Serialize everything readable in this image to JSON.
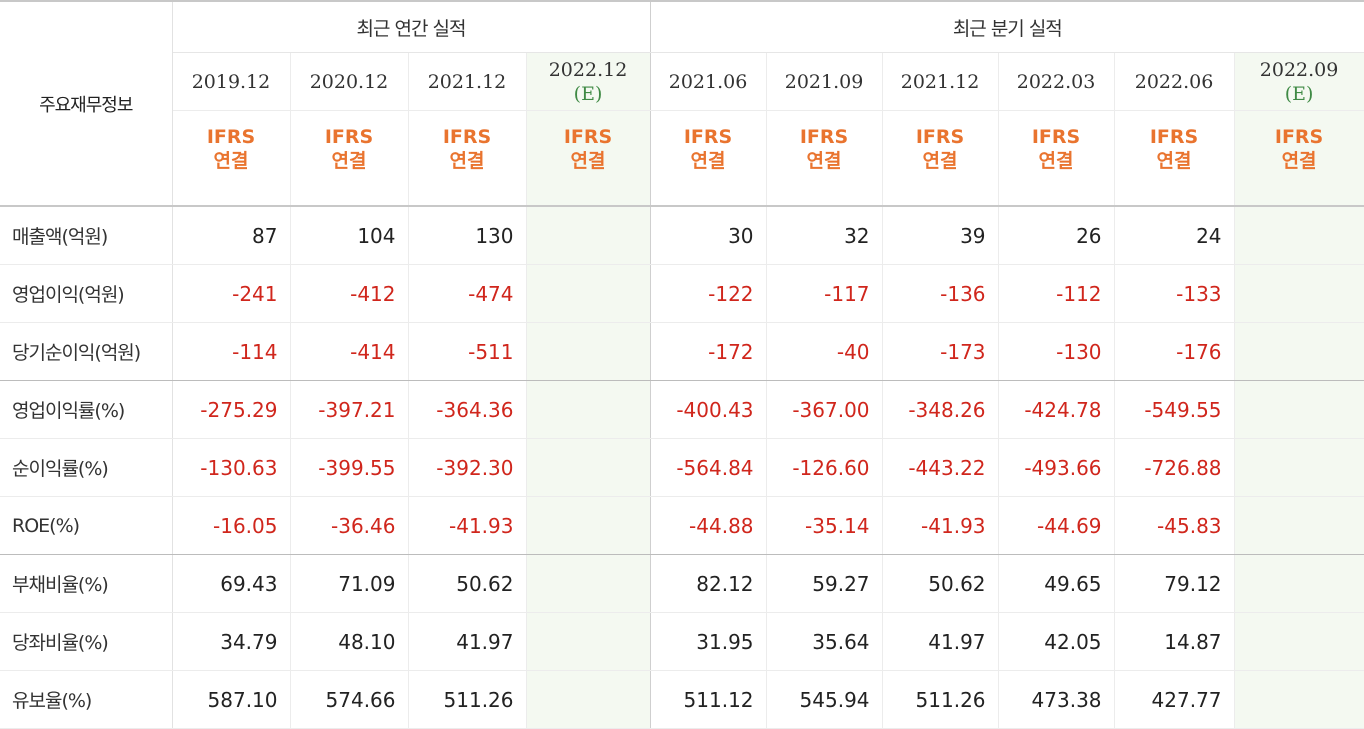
{
  "header": {
    "corner_label": "주요재무정보",
    "annual_group": "최근 연간 실적",
    "quarter_group": "최근 분기 실적",
    "estimate_tag": "(E)",
    "ifrs_line1": "IFRS",
    "ifrs_line2": "연결"
  },
  "annual_periods": [
    {
      "label": "2019.12",
      "estimate": false
    },
    {
      "label": "2020.12",
      "estimate": false
    },
    {
      "label": "2021.12",
      "estimate": false
    },
    {
      "label": "2022.12",
      "estimate": true
    }
  ],
  "quarter_periods": [
    {
      "label": "2021.06",
      "estimate": false
    },
    {
      "label": "2021.09",
      "estimate": false
    },
    {
      "label": "2021.12",
      "estimate": false
    },
    {
      "label": "2022.03",
      "estimate": false
    },
    {
      "label": "2022.06",
      "estimate": false
    },
    {
      "label": "2022.09",
      "estimate": true
    }
  ],
  "rows": [
    {
      "label": "매출액(억원)",
      "values": [
        "87",
        "104",
        "130",
        "",
        "30",
        "32",
        "39",
        "26",
        "24",
        ""
      ]
    },
    {
      "label": "영업이익(억원)",
      "values": [
        "-241",
        "-412",
        "-474",
        "",
        "-122",
        "-117",
        "-136",
        "-112",
        "-133",
        ""
      ]
    },
    {
      "label": "당기순이익(억원)",
      "values": [
        "-114",
        "-414",
        "-511",
        "",
        "-172",
        "-40",
        "-173",
        "-130",
        "-176",
        ""
      ]
    },
    {
      "label": "영업이익률(%)",
      "values": [
        "-275.29",
        "-397.21",
        "-364.36",
        "",
        "-400.43",
        "-367.00",
        "-348.26",
        "-424.78",
        "-549.55",
        ""
      ]
    },
    {
      "label": "순이익률(%)",
      "values": [
        "-130.63",
        "-399.55",
        "-392.30",
        "",
        "-564.84",
        "-126.60",
        "-443.22",
        "-493.66",
        "-726.88",
        ""
      ]
    },
    {
      "label": "ROE(%)",
      "values": [
        "-16.05",
        "-36.46",
        "-41.93",
        "",
        "-44.88",
        "-35.14",
        "-41.93",
        "-44.69",
        "-45.83",
        ""
      ]
    },
    {
      "label": "부채비율(%)",
      "values": [
        "69.43",
        "71.09",
        "50.62",
        "",
        "82.12",
        "59.27",
        "50.62",
        "49.65",
        "79.12",
        ""
      ]
    },
    {
      "label": "당좌비율(%)",
      "values": [
        "34.79",
        "48.10",
        "41.97",
        "",
        "31.95",
        "35.64",
        "41.97",
        "42.05",
        "14.87",
        ""
      ]
    },
    {
      "label": "유보율(%)",
      "values": [
        "587.10",
        "574.66",
        "511.26",
        "",
        "511.12",
        "545.94",
        "511.26",
        "473.38",
        "427.77",
        ""
      ]
    }
  ],
  "colors": {
    "negative": "#d0261c",
    "ifrs": "#e9742f",
    "estimate_bg": "#f4f9f1",
    "estimate_tag": "#3f8a45"
  }
}
